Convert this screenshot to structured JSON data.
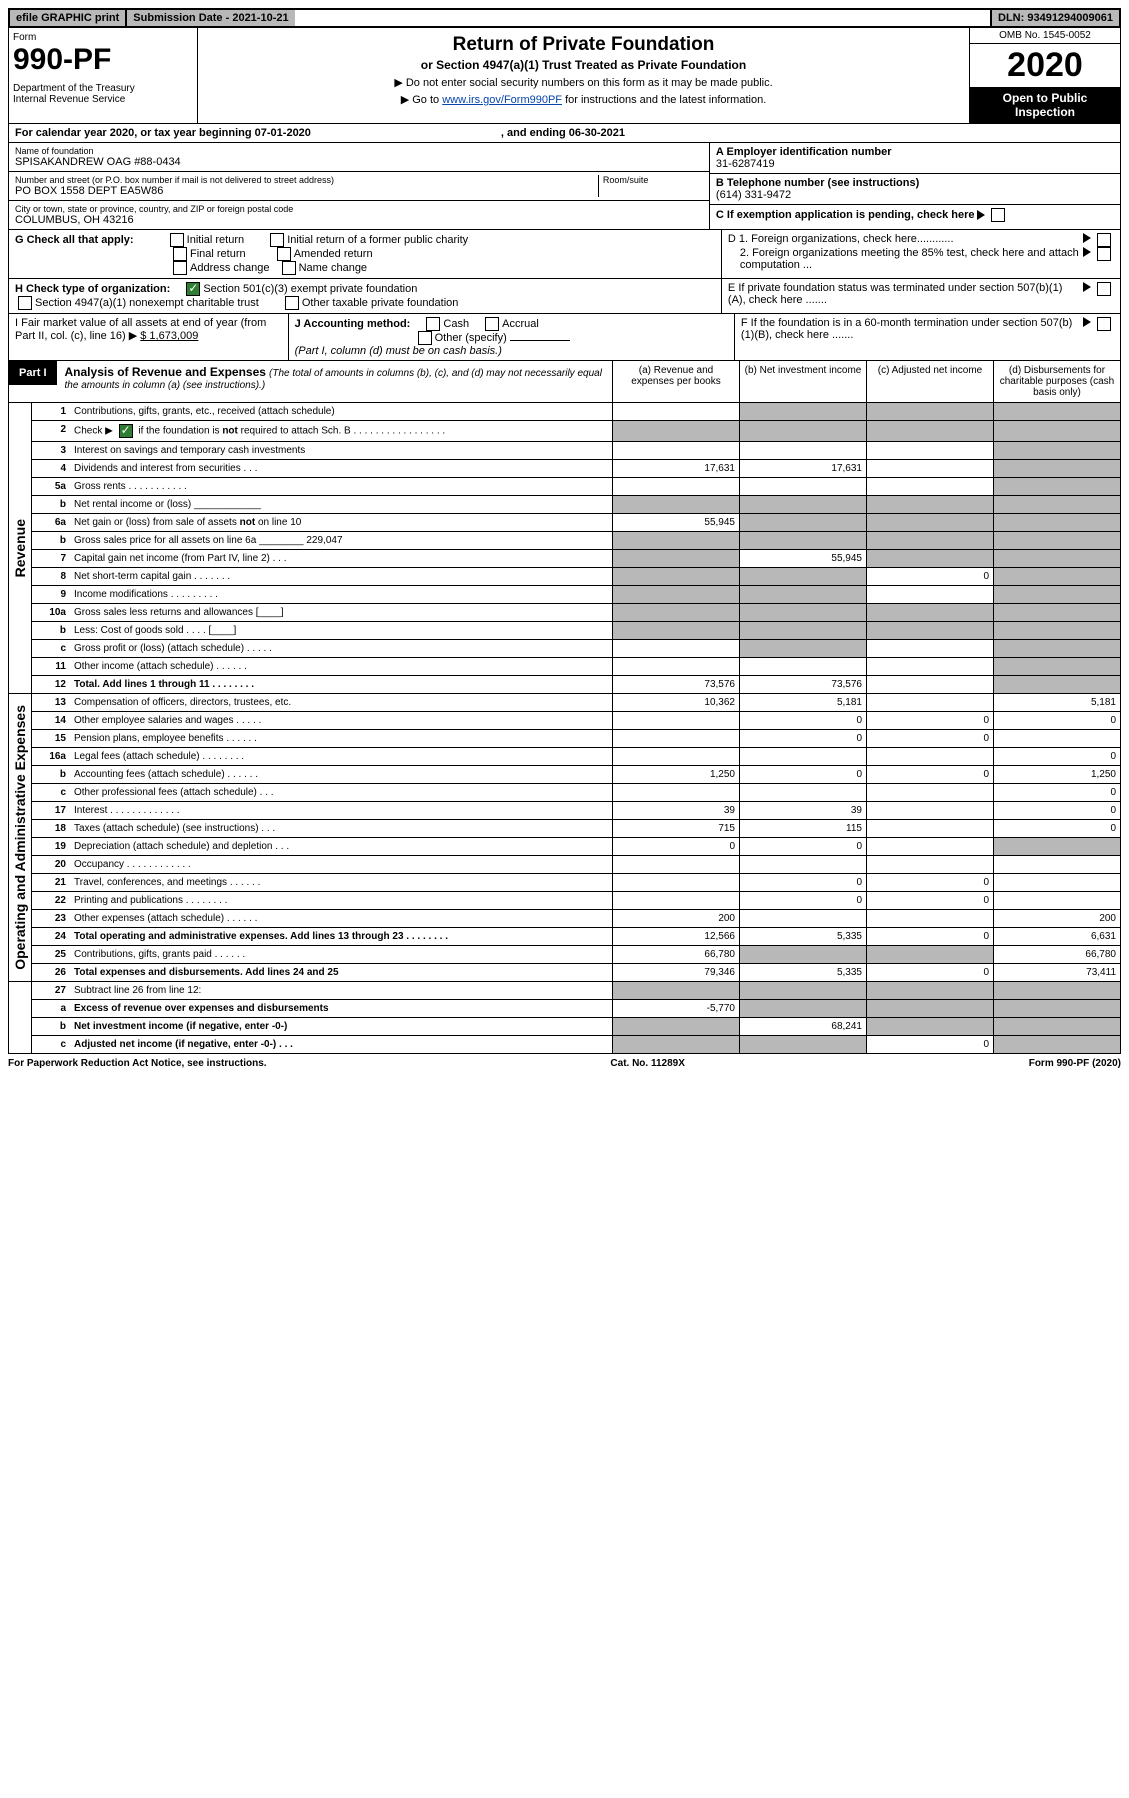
{
  "topbar": {
    "efile": "efile GRAPHIC print",
    "subdate_label": "Submission Date - ",
    "subdate": "2021-10-21",
    "dln_label": "DLN: ",
    "dln": "93491294009061"
  },
  "header": {
    "form_label": "Form",
    "form_num": "990-PF",
    "dept": "Department of the Treasury\nInternal Revenue Service",
    "title": "Return of Private Foundation",
    "subtitle": "or Section 4947(a)(1) Trust Treated as Private Foundation",
    "note1": "▶ Do not enter social security numbers on this form as it may be made public.",
    "note2_pre": "▶ Go to ",
    "note2_link": "www.irs.gov/Form990PF",
    "note2_post": " for instructions and the latest information.",
    "omb": "OMB No. 1545-0052",
    "year": "2020",
    "open": "Open to Public Inspection"
  },
  "calendar": {
    "text": "For calendar year 2020, or tax year beginning 07-01-2020",
    "mid": ", and ending 06-30-2021"
  },
  "identity": {
    "name_label": "Name of foundation",
    "name": "SPISAKANDREW OAG #88-0434",
    "addr_label": "Number and street (or P.O. box number if mail is not delivered to street address)",
    "room_label": "Room/suite",
    "addr": "PO BOX 1558 DEPT EA5W86",
    "city_label": "City or town, state or province, country, and ZIP or foreign postal code",
    "city": "COLUMBUS, OH  43216",
    "a_label": "A Employer identification number",
    "a_val": "31-6287419",
    "b_label": "B Telephone number (see instructions)",
    "b_val": "(614) 331-9472",
    "c_label": "C If exemption application is pending, check here"
  },
  "g": {
    "label": "G Check all that apply:",
    "opts": [
      "Initial return",
      "Final return",
      "Address change",
      "Initial return of a former public charity",
      "Amended return",
      "Name change"
    ]
  },
  "d": {
    "d1": "D 1. Foreign organizations, check here............",
    "d2": "2. Foreign organizations meeting the 85% test, check here and attach computation ..."
  },
  "e": {
    "text": "E  If private foundation status was terminated under section 507(b)(1)(A), check here ......."
  },
  "h": {
    "label": "H Check type of organization:",
    "opt1": "Section 501(c)(3) exempt private foundation",
    "opt2": "Section 4947(a)(1) nonexempt charitable trust",
    "opt3": "Other taxable private foundation"
  },
  "i": {
    "label": "I Fair market value of all assets at end of year (from Part II, col. (c), line 16)",
    "arrow": "▶",
    "amt": "$  1,673,009"
  },
  "j": {
    "label": "J Accounting method:",
    "cash": "Cash",
    "accrual": "Accrual",
    "other": "Other (specify)",
    "note": "(Part I, column (d) must be on cash basis.)"
  },
  "f": {
    "text": "F  If the foundation is in a 60-month termination under section 507(b)(1)(B), check here ......."
  },
  "part1": {
    "tab": "Part I",
    "title": "Analysis of Revenue and Expenses",
    "title_note": "(The total of amounts in columns (b), (c), and (d) may not necessarily equal the amounts in column (a) (see instructions).)",
    "cols": [
      "(a)  Revenue and expenses per books",
      "(b)  Net investment income",
      "(c)  Adjusted net income",
      "(d)  Disbursements for charitable purposes (cash basis only)"
    ]
  },
  "revenue_side": "Revenue",
  "expense_side": "Operating and Administrative Expenses",
  "lines": [
    {
      "n": "1",
      "d": "Contributions, gifts, grants, etc., received (attach schedule)",
      "a": "",
      "b": "shade",
      "c": "shade",
      "dd": "shade"
    },
    {
      "n": "2",
      "d": "Check ▶ ☑ if the foundation is not required to attach Sch. B   .  .  .  .  .  .  .  .  .  .  .  .  .  .  .  .  .",
      "a": "shade",
      "b": "shade",
      "c": "shade",
      "dd": "shade"
    },
    {
      "n": "3",
      "d": "Interest on savings and temporary cash investments",
      "a": "",
      "b": "",
      "c": "",
      "dd": "shade"
    },
    {
      "n": "4",
      "d": "Dividends and interest from securities    .   .   .",
      "a": "17,631",
      "b": "17,631",
      "c": "",
      "dd": "shade"
    },
    {
      "n": "5a",
      "d": "Gross rents    .   .   .   .   .   .   .   .   .   .   .",
      "a": "",
      "b": "",
      "c": "",
      "dd": "shade"
    },
    {
      "n": "b",
      "d": "Net rental income or (loss)  ____________",
      "a": "shade",
      "b": "shade",
      "c": "shade",
      "dd": "shade"
    },
    {
      "n": "6a",
      "d": "Net gain or (loss) from sale of assets not on line 10",
      "a": "55,945",
      "b": "shade",
      "c": "shade",
      "dd": "shade"
    },
    {
      "n": "b",
      "d": "Gross sales price for all assets on line 6a ________ 229,047",
      "a": "shade",
      "b": "shade",
      "c": "shade",
      "dd": "shade"
    },
    {
      "n": "7",
      "d": "Capital gain net income (from Part IV, line 2)   .   .   .",
      "a": "shade",
      "b": "55,945",
      "c": "shade",
      "dd": "shade"
    },
    {
      "n": "8",
      "d": "Net short-term capital gain  .   .   .   .   .   .   .",
      "a": "shade",
      "b": "shade",
      "c": "0",
      "dd": "shade"
    },
    {
      "n": "9",
      "d": "Income modifications .   .   .   .   .   .   .   .   .",
      "a": "shade",
      "b": "shade",
      "c": "",
      "dd": "shade"
    },
    {
      "n": "10a",
      "d": "Gross sales less returns and allowances  [____]",
      "a": "shade",
      "b": "shade",
      "c": "shade",
      "dd": "shade"
    },
    {
      "n": "b",
      "d": "Less: Cost of goods sold    .   .   .   .   [____]",
      "a": "shade",
      "b": "shade",
      "c": "shade",
      "dd": "shade"
    },
    {
      "n": "c",
      "d": "Gross profit or (loss) (attach schedule)   .   .   .   .   .",
      "a": "",
      "b": "shade",
      "c": "",
      "dd": "shade"
    },
    {
      "n": "11",
      "d": "Other income (attach schedule)   .   .   .   .   .   .",
      "a": "",
      "b": "",
      "c": "",
      "dd": "shade"
    },
    {
      "n": "12",
      "d": "Total. Add lines 1 through 11  .   .   .   .   .   .   .   .",
      "a": "73,576",
      "b": "73,576",
      "c": "",
      "dd": "shade",
      "bold": true
    }
  ],
  "exp_lines": [
    {
      "n": "13",
      "d": "Compensation of officers, directors, trustees, etc.",
      "a": "10,362",
      "b": "5,181",
      "c": "",
      "dd": "5,181"
    },
    {
      "n": "14",
      "d": "Other employee salaries and wages   .   .   .   .   .",
      "a": "",
      "b": "0",
      "c": "0",
      "dd": "0"
    },
    {
      "n": "15",
      "d": "Pension plans, employee benefits .   .   .   .   .   .",
      "a": "",
      "b": "0",
      "c": "0",
      "dd": ""
    },
    {
      "n": "16a",
      "d": "Legal fees (attach schedule) .   .   .   .   .   .   .   .",
      "a": "",
      "b": "",
      "c": "",
      "dd": "0"
    },
    {
      "n": "b",
      "d": "Accounting fees (attach schedule) .   .   .   .   .   .",
      "a": "1,250",
      "b": "0",
      "c": "0",
      "dd": "1,250"
    },
    {
      "n": "c",
      "d": "Other professional fees (attach schedule)   .   .   .",
      "a": "",
      "b": "",
      "c": "",
      "dd": "0"
    },
    {
      "n": "17",
      "d": "Interest .   .   .   .   .   .   .   .   .   .   .   .   .",
      "a": "39",
      "b": "39",
      "c": "",
      "dd": "0"
    },
    {
      "n": "18",
      "d": "Taxes (attach schedule) (see instructions)    .   .   .",
      "a": "715",
      "b": "115",
      "c": "",
      "dd": "0"
    },
    {
      "n": "19",
      "d": "Depreciation (attach schedule) and depletion   .   .   .",
      "a": "0",
      "b": "0",
      "c": "",
      "dd": "shade"
    },
    {
      "n": "20",
      "d": "Occupancy .   .   .   .   .   .   .   .   .   .   .   .",
      "a": "",
      "b": "",
      "c": "",
      "dd": ""
    },
    {
      "n": "21",
      "d": "Travel, conferences, and meetings .   .   .   .   .   .",
      "a": "",
      "b": "0",
      "c": "0",
      "dd": ""
    },
    {
      "n": "22",
      "d": "Printing and publications .   .   .   .   .   .   .   .",
      "a": "",
      "b": "0",
      "c": "0",
      "dd": ""
    },
    {
      "n": "23",
      "d": "Other expenses (attach schedule) .   .   .   .   .   .",
      "a": "200",
      "b": "",
      "c": "",
      "dd": "200"
    },
    {
      "n": "24",
      "d": "Total operating and administrative expenses. Add lines 13 through 23  .   .   .   .   .   .   .   .",
      "a": "12,566",
      "b": "5,335",
      "c": "0",
      "dd": "6,631",
      "bold": true
    },
    {
      "n": "25",
      "d": "Contributions, gifts, grants paid    .   .   .   .   .   .",
      "a": "66,780",
      "b": "shade",
      "c": "shade",
      "dd": "66,780"
    },
    {
      "n": "26",
      "d": "Total expenses and disbursements. Add lines 24 and 25",
      "a": "79,346",
      "b": "5,335",
      "c": "0",
      "dd": "73,411",
      "bold": true
    }
  ],
  "bottom_lines": [
    {
      "n": "27",
      "d": "Subtract line 26 from line 12:",
      "a": "shade",
      "b": "shade",
      "c": "shade",
      "dd": "shade"
    },
    {
      "n": "a",
      "d": "Excess of revenue over expenses and disbursements",
      "a": "-5,770",
      "b": "shade",
      "c": "shade",
      "dd": "shade",
      "bold": true
    },
    {
      "n": "b",
      "d": "Net investment income (if negative, enter -0-)",
      "a": "shade",
      "b": "68,241",
      "c": "shade",
      "dd": "shade",
      "bold": true
    },
    {
      "n": "c",
      "d": "Adjusted net income (if negative, enter -0-)   .   .   .",
      "a": "shade",
      "b": "shade",
      "c": "0",
      "dd": "shade",
      "bold": true
    }
  ],
  "footer": {
    "left": "For Paperwork Reduction Act Notice, see instructions.",
    "center": "Cat. No. 11289X",
    "right": "Form 990-PF (2020)"
  },
  "colors": {
    "shade": "#b8b8b8",
    "link": "#0645ad",
    "check": "#2e7d32"
  }
}
